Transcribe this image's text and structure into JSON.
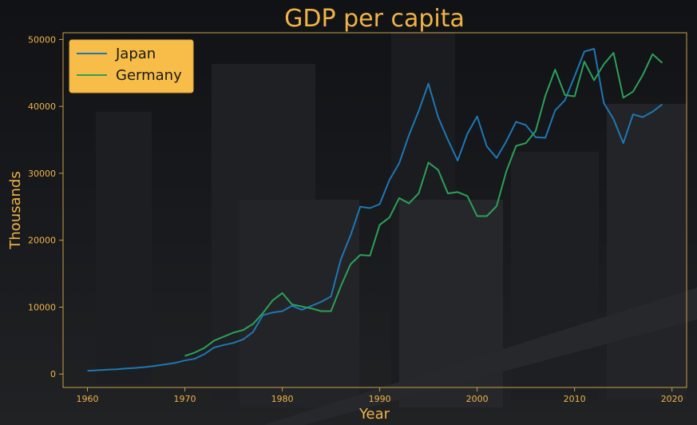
{
  "chart_data": {
    "type": "line",
    "title": "GDP per capita",
    "xlabel": "Year",
    "ylabel": "Thousands",
    "xlim": [
      1957.5,
      2021.5
    ],
    "ylim": [
      -2000,
      51000
    ],
    "xticks": [
      1960,
      1970,
      1980,
      1990,
      2000,
      2010,
      2020
    ],
    "yticks": [
      0,
      10000,
      20000,
      30000,
      40000,
      50000
    ],
    "grid": false,
    "legend_position": "top-left",
    "colors": {
      "background": "#14161a",
      "text": "#f0b348",
      "legend_fill": "#f7bd48",
      "legend_text": "#1a1a1a",
      "axis": "#c9a04a"
    },
    "series": [
      {
        "name": "Japan",
        "color": "#1f77b4",
        "x": [
          1960,
          1961,
          1962,
          1963,
          1964,
          1965,
          1966,
          1967,
          1968,
          1969,
          1970,
          1971,
          1972,
          1973,
          1974,
          1975,
          1976,
          1977,
          1978,
          1979,
          1980,
          1981,
          1982,
          1983,
          1984,
          1985,
          1986,
          1987,
          1988,
          1989,
          1990,
          1991,
          1992,
          1993,
          1994,
          1995,
          1996,
          1997,
          1998,
          1999,
          2000,
          2001,
          2002,
          2003,
          2004,
          2005,
          2006,
          2007,
          2008,
          2009,
          2010,
          2011,
          2012,
          2013,
          2014,
          2015,
          2016,
          2017,
          2018,
          2019
        ],
        "values": [
          500,
          570,
          650,
          720,
          840,
          920,
          1060,
          1230,
          1450,
          1670,
          2040,
          2270,
          2960,
          3970,
          4350,
          4660,
          5200,
          6300,
          8800,
          9200,
          9400,
          10200,
          9600,
          10200,
          10800,
          11600,
          17100,
          20700,
          25000,
          24800,
          25400,
          29000,
          31500,
          35700,
          39300,
          43400,
          38400,
          35000,
          31900,
          35900,
          38500,
          34000,
          32300,
          34800,
          37700,
          37200,
          35400,
          35300,
          39400,
          40900,
          44500,
          48200,
          48600,
          40500,
          38100,
          34500,
          38800,
          38400,
          39200,
          40300
        ]
      },
      {
        "name": "Germany",
        "color": "#2ca05a",
        "x": [
          1970,
          1971,
          1972,
          1973,
          1974,
          1975,
          1976,
          1977,
          1978,
          1979,
          1980,
          1981,
          1982,
          1983,
          1984,
          1985,
          1986,
          1987,
          1988,
          1989,
          1990,
          1991,
          1992,
          1993,
          1994,
          1995,
          1996,
          1997,
          1998,
          1999,
          2000,
          2001,
          2002,
          2003,
          2004,
          2005,
          2006,
          2007,
          2008,
          2009,
          2010,
          2011,
          2012,
          2013,
          2014,
          2015,
          2016,
          2017,
          2018,
          2019
        ],
        "values": [
          2700,
          3200,
          3900,
          5000,
          5600,
          6200,
          6600,
          7500,
          9100,
          11000,
          12100,
          10400,
          10100,
          9800,
          9400,
          9400,
          13100,
          16400,
          17800,
          17700,
          22300,
          23400,
          26300,
          25500,
          27000,
          31600,
          30500,
          27000,
          27200,
          26600,
          23600,
          23600,
          25100,
          30300,
          34100,
          34500,
          36300,
          41600,
          45500,
          41700,
          41500,
          46700,
          43900,
          46300,
          48000,
          41300,
          42200,
          44700,
          47800,
          46500
        ]
      }
    ]
  }
}
